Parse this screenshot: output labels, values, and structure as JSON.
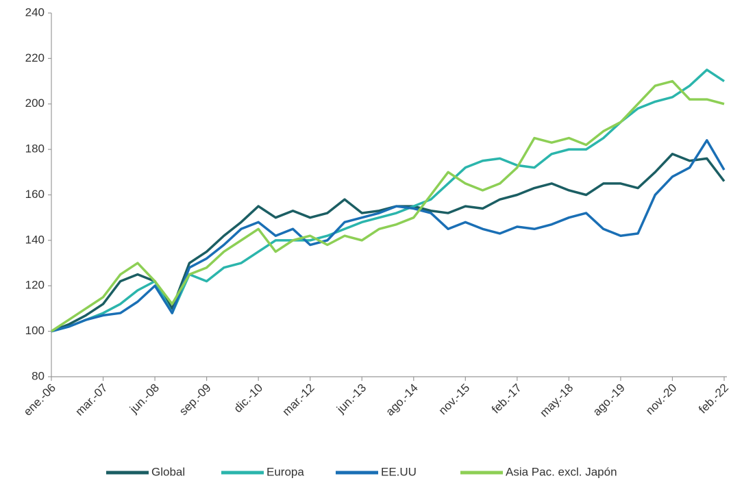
{
  "chart_data": {
    "type": "line",
    "categories": [
      "ene.-06",
      null,
      null,
      "mar.-07",
      null,
      null,
      "jun.-08",
      null,
      null,
      "sep.-09",
      null,
      null,
      "dic.-10",
      null,
      null,
      "mar.-12",
      null,
      null,
      "jun.-13",
      null,
      null,
      "ago.-14",
      null,
      null,
      "nov.-15",
      null,
      null,
      "feb.-17",
      null,
      null,
      "may.-18",
      null,
      null,
      "ago.-19",
      null,
      null,
      "nov.-20",
      null,
      null,
      "feb.-22"
    ],
    "series": [
      {
        "name": "Global",
        "color": "#1b5e63",
        "values": [
          100,
          103,
          107,
          112,
          122,
          125,
          122,
          110,
          130,
          135,
          142,
          148,
          155,
          150,
          153,
          150,
          152,
          158,
          152,
          153,
          155,
          155,
          153,
          152,
          155,
          154,
          158,
          160,
          163,
          165,
          162,
          160,
          165,
          165,
          163,
          170,
          178,
          175,
          176,
          166
        ]
      },
      {
        "name": "Europa",
        "color": "#2bb5ac",
        "values": [
          100,
          102,
          105,
          108,
          112,
          118,
          122,
          108,
          125,
          122,
          128,
          130,
          135,
          140,
          140,
          140,
          142,
          145,
          148,
          150,
          152,
          155,
          158,
          165,
          172,
          175,
          176,
          173,
          172,
          178,
          180,
          180,
          185,
          192,
          198,
          201,
          203,
          208,
          215,
          210
        ]
      },
      {
        "name": "EE.UU",
        "color": "#1a6fb5",
        "values": [
          100,
          102,
          105,
          107,
          108,
          113,
          120,
          108,
          128,
          132,
          138,
          145,
          148,
          142,
          145,
          138,
          140,
          148,
          150,
          152,
          155,
          154,
          152,
          145,
          148,
          145,
          143,
          146,
          145,
          147,
          150,
          152,
          145,
          142,
          143,
          160,
          168,
          172,
          184,
          171
        ]
      },
      {
        "name": "Asia Pac. excl. Japón",
        "color": "#8dcf55",
        "values": [
          100,
          105,
          110,
          115,
          125,
          130,
          122,
          112,
          125,
          128,
          135,
          140,
          145,
          135,
          140,
          142,
          138,
          142,
          140,
          145,
          147,
          150,
          160,
          170,
          165,
          162,
          165,
          172,
          185,
          183,
          185,
          182,
          188,
          192,
          200,
          208,
          210,
          202,
          202,
          200
        ]
      }
    ],
    "ylim": [
      80,
      240
    ],
    "yticks": [
      80,
      100,
      120,
      140,
      160,
      180,
      200,
      220,
      240
    ],
    "grid": false,
    "legend": "bottom"
  }
}
